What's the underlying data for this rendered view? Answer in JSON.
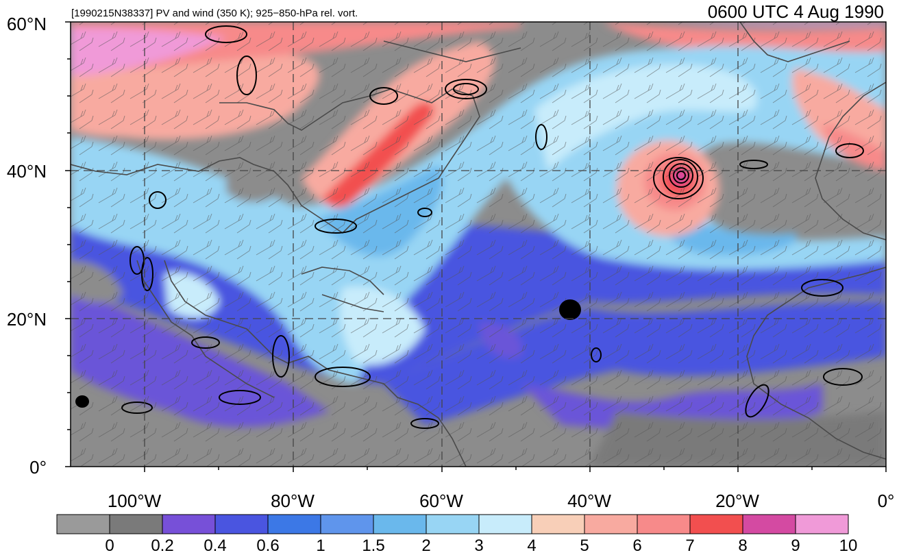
{
  "header": {
    "left_label": "[1990215N38337] PV and wind (350 K); 925−850-hPa rel. vort.",
    "right_label": "0600 UTC 4 Aug 1990"
  },
  "map": {
    "lat_labels": [
      "60°N",
      "40°N",
      "20°N",
      "0°"
    ],
    "lon_labels": [
      "100°W",
      "80°W",
      "60°W",
      "40°W",
      "20°W",
      "0°"
    ],
    "colors": {
      "background_low_pv": "#8c8c8c",
      "coast": "#4a4a4a",
      "contour": "#000000",
      "grid": "#444444"
    }
  },
  "colorbar": {
    "tick_labels": [
      "0",
      "0.2",
      "0.4",
      "0.6",
      "1",
      "1.5",
      "2",
      "3",
      "4",
      "5",
      "6",
      "7",
      "8",
      "9",
      "10"
    ],
    "colors": [
      "#9a9a9a",
      "#7a7a7a",
      "#7750d8",
      "#4a55e0",
      "#3c78e6",
      "#5f95ec",
      "#6ab8ec",
      "#98d5f4",
      "#c8ecfb",
      "#f8cfb8",
      "#f8aaa0",
      "#f78a8a",
      "#f24f4f",
      "#d44aa2",
      "#f09ad8"
    ]
  }
}
